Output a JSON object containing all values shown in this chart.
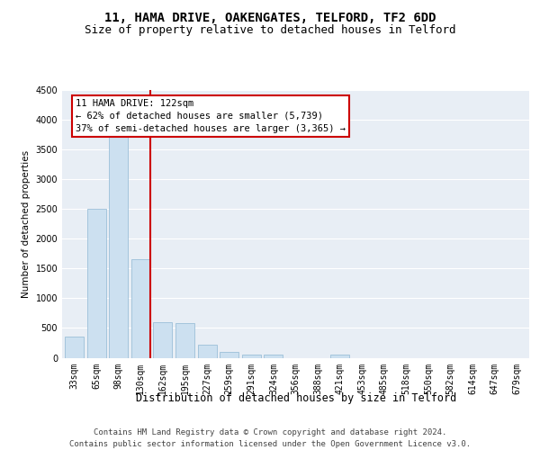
{
  "title": "11, HAMA DRIVE, OAKENGATES, TELFORD, TF2 6DD",
  "subtitle": "Size of property relative to detached houses in Telford",
  "xlabel": "Distribution of detached houses by size in Telford",
  "ylabel": "Number of detached properties",
  "bar_color": "#cce0f0",
  "bar_edge_color": "#9bbfd8",
  "vline_color": "#cc0000",
  "vline_bar_index": 3,
  "annotation_text": "11 HAMA DRIVE: 122sqm\n← 62% of detached houses are smaller (5,739)\n37% of semi-detached houses are larger (3,365) →",
  "annotation_box_color": "#ffffff",
  "annotation_box_edge": "#cc0000",
  "plot_bg_color": "#e8eef5",
  "footer_line1": "Contains HM Land Registry data © Crown copyright and database right 2024.",
  "footer_line2": "Contains public sector information licensed under the Open Government Licence v3.0.",
  "categories": [
    "33sqm",
    "65sqm",
    "98sqm",
    "130sqm",
    "162sqm",
    "195sqm",
    "227sqm",
    "259sqm",
    "291sqm",
    "324sqm",
    "356sqm",
    "388sqm",
    "421sqm",
    "453sqm",
    "485sqm",
    "518sqm",
    "550sqm",
    "582sqm",
    "614sqm",
    "647sqm",
    "679sqm"
  ],
  "values": [
    350,
    2500,
    3750,
    1650,
    600,
    580,
    225,
    100,
    50,
    50,
    0,
    0,
    50,
    0,
    0,
    0,
    0,
    0,
    0,
    0,
    0
  ],
  "ylim": [
    0,
    4500
  ],
  "yticks": [
    0,
    500,
    1000,
    1500,
    2000,
    2500,
    3000,
    3500,
    4000,
    4500
  ],
  "title_fontsize": 10,
  "subtitle_fontsize": 9,
  "xlabel_fontsize": 8.5,
  "ylabel_fontsize": 7.5,
  "tick_fontsize": 7,
  "footer_fontsize": 6.5,
  "annotation_fontsize": 7.5
}
